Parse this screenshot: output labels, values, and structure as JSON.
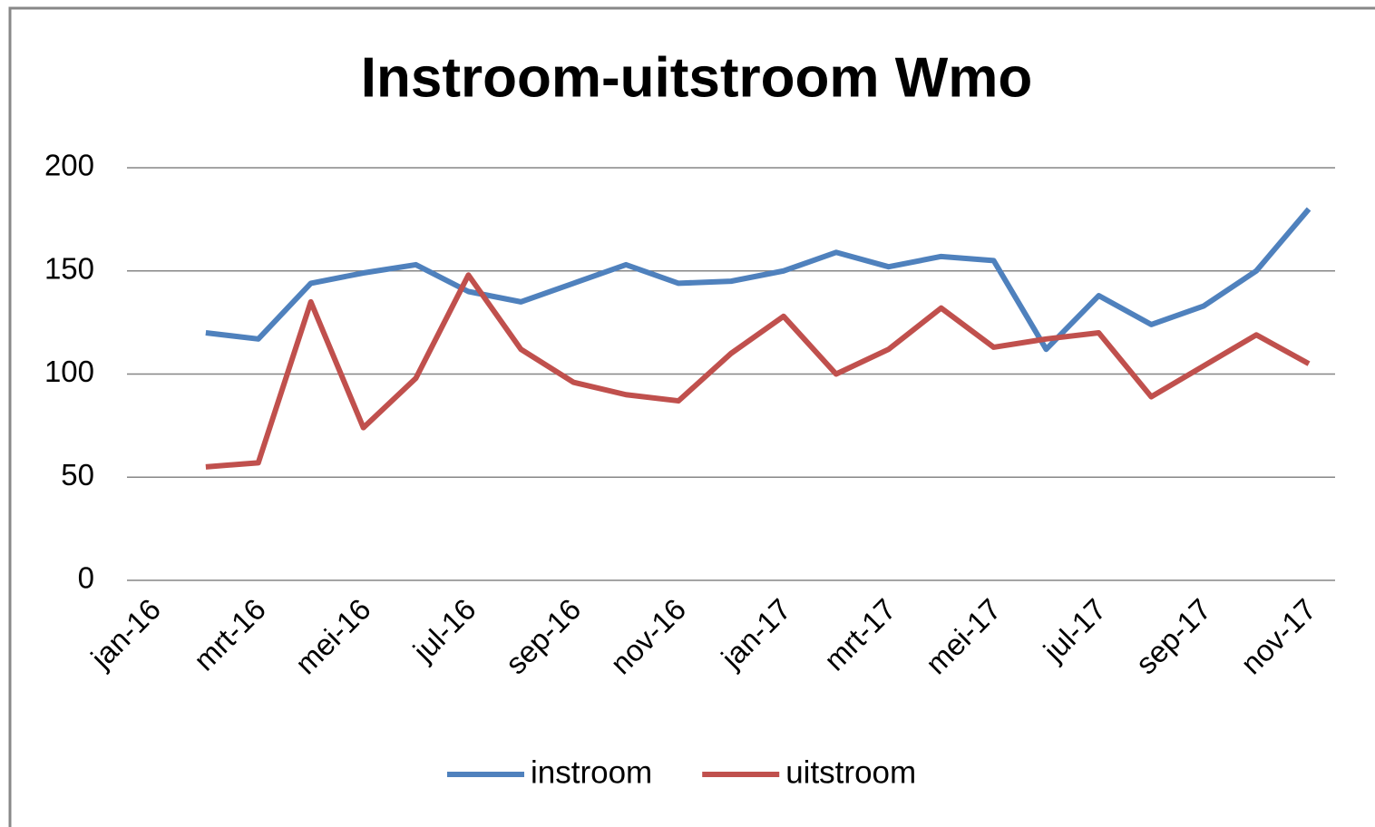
{
  "chart_data": {
    "type": "line",
    "title": "Instroom-uitstroom Wmo",
    "categories": [
      "jan-16",
      null,
      "mrt-16",
      null,
      "mei-16",
      null,
      "jul-16",
      null,
      "sep-16",
      null,
      "nov-16",
      null,
      "jan-17",
      null,
      "mrt-17",
      null,
      "mei-17",
      null,
      "jul-17",
      null,
      "sep-17",
      null,
      "nov-17"
    ],
    "series": [
      {
        "name": "instroom",
        "color": "#4f81bd",
        "values": [
          null,
          120,
          117,
          144,
          149,
          153,
          140,
          135,
          144,
          153,
          144,
          145,
          150,
          159,
          152,
          157,
          155,
          112,
          138,
          124,
          133,
          150,
          180
        ]
      },
      {
        "name": "uitstroom",
        "color": "#c0504d",
        "values": [
          null,
          55,
          57,
          135,
          74,
          98,
          148,
          112,
          96,
          90,
          87,
          110,
          128,
          100,
          112,
          132,
          113,
          117,
          120,
          89,
          104,
          119,
          105
        ]
      }
    ],
    "ylim": [
      0,
      200
    ],
    "yticks": [
      0,
      50,
      100,
      150,
      200
    ],
    "grid": true,
    "legend": "bottom"
  }
}
